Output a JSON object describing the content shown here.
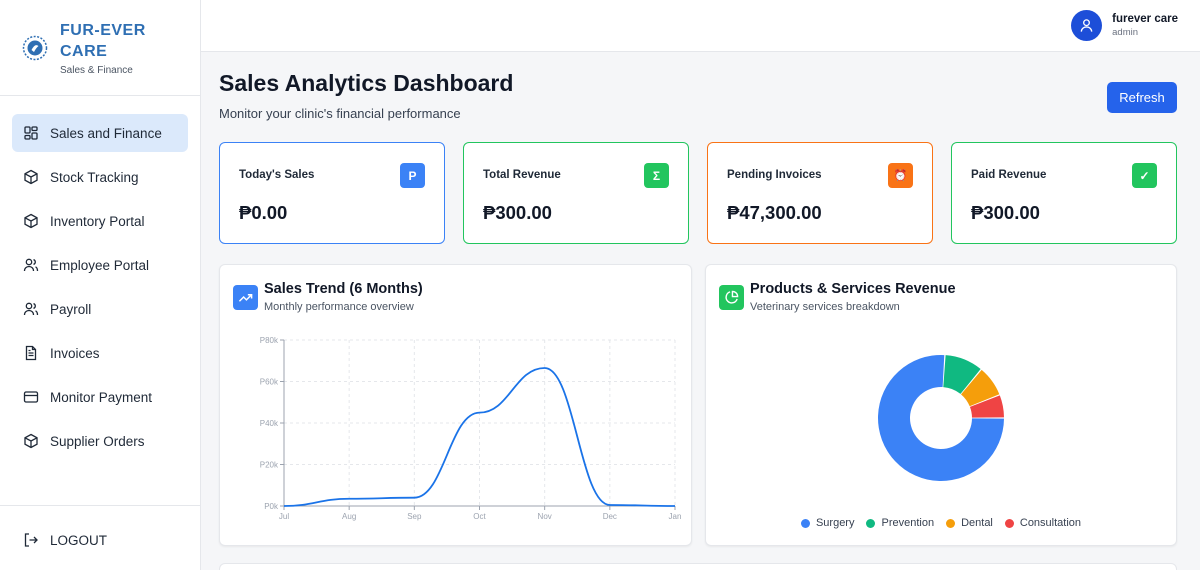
{
  "brand": {
    "title_line1": "FUR-EVER",
    "title_line2": "CARE",
    "subtitle": "Sales & Finance"
  },
  "nav": {
    "items": [
      {
        "label": "Sales and Finance",
        "icon": "dashboard-grid-icon",
        "active": true
      },
      {
        "label": "Stock Tracking",
        "icon": "box-icon"
      },
      {
        "label": "Inventory Portal",
        "icon": "box-icon"
      },
      {
        "label": "Employee Portal",
        "icon": "users-icon"
      },
      {
        "label": "Payroll",
        "icon": "users-icon"
      },
      {
        "label": "Invoices",
        "icon": "document-icon"
      },
      {
        "label": "Monitor Payment",
        "icon": "credit-card-icon"
      },
      {
        "label": "Supplier Orders",
        "icon": "box-icon"
      }
    ],
    "logout_label": "LOGOUT"
  },
  "user": {
    "name": "furever care",
    "role": "admin"
  },
  "header": {
    "title": "Sales Analytics Dashboard",
    "subtitle": "Monitor your clinic's financial performance",
    "refresh_label": "Refresh"
  },
  "cards": [
    {
      "label": "Today's Sales",
      "value": "₱0.00",
      "icon_text": "P",
      "icon": "peso-icon",
      "border": "#3b82f6",
      "icon_bg": "#3b82f6"
    },
    {
      "label": "Total Revenue",
      "value": "₱300.00",
      "icon_text": "Σ",
      "icon": "sigma-icon",
      "border": "#22c55e",
      "icon_bg": "#22c55e"
    },
    {
      "label": "Pending Invoices",
      "value": "₱47,300.00",
      "icon_text": "⏰",
      "icon": "alarm-clock-icon",
      "border": "#f97316",
      "icon_bg": "#f97316"
    },
    {
      "label": "Paid Revenue",
      "value": "₱300.00",
      "icon_text": "✓",
      "icon": "check-icon",
      "border": "#22c55e",
      "icon_bg": "#22c55e"
    }
  ],
  "trend_panel": {
    "title": "Sales Trend (6 Months)",
    "subtitle": "Monthly performance overview",
    "icon": "trending-up-icon"
  },
  "revenue_panel": {
    "title": "Products & Services Revenue",
    "subtitle": "Veterinary services breakdown",
    "icon": "pie-chart-icon"
  },
  "chart_data": [
    {
      "type": "line",
      "x": [
        "Jul",
        "Aug",
        "Sep",
        "Oct",
        "Nov",
        "Dec",
        "Jan"
      ],
      "series": [
        {
          "values": [
            0,
            3500,
            4000,
            45000,
            66500,
            500,
            0
          ],
          "color": "#1a73e8"
        }
      ],
      "ylim": [
        0,
        80000
      ],
      "yticks": [
        0,
        20000,
        40000,
        60000,
        80000
      ],
      "ytick_labels": [
        "P0k",
        "P20k",
        "P40k",
        "P60k",
        "P80k"
      ],
      "grid": true
    },
    {
      "type": "pie",
      "donut": true,
      "slices": [
        {
          "name": "Surgery",
          "value": 76,
          "color": "#3b82f6"
        },
        {
          "name": "Prevention",
          "value": 10,
          "color": "#10b981"
        },
        {
          "name": "Dental",
          "value": 8,
          "color": "#f59e0b"
        },
        {
          "name": "Consultation",
          "value": 6,
          "color": "#ef4444"
        }
      ],
      "legend": "bottom"
    }
  ]
}
